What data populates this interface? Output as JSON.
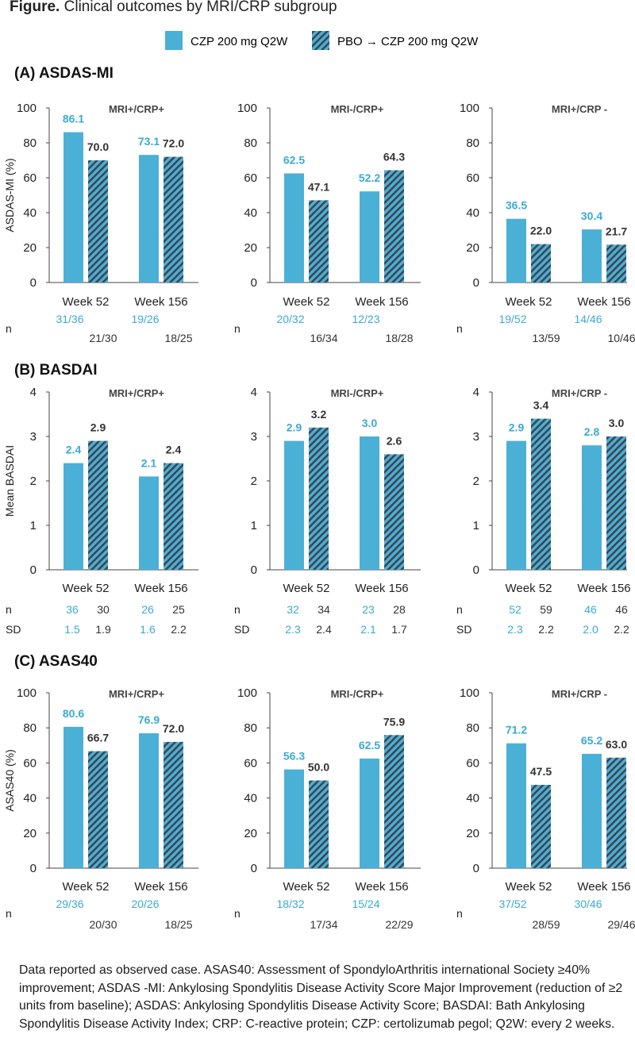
{
  "figure": {
    "title_bold": "Figure.",
    "title_rest": " Clinical outcomes by MRI/CRP subgroup",
    "footnote": "Data reported as observed case. ASAS40: Assessment of  SpondyloArthritis international Society ≥40% improvement; ASDAS -MI: Ankylosing Spondylitis Disease Activity Score Major Improvement (reduction of ≥2 units from baseline); ASDAS: Ankylosing Spondylitis Disease Activity Score; BASDAI: Bath Ankylosing Spondylitis Disease Activity Index; CRP: C-reactive protein; CZP: certolizumab pegol; Q2W: every 2 weeks."
  },
  "legend": {
    "czp_label": "CZP 200 mg Q2W",
    "pbo_label": "PBO → CZP 200 mg Q2W"
  },
  "colors": {
    "czp": "#4bb0d6",
    "pbo_hatch": "#4bb0d6",
    "pbo_stripe": "#3d4652",
    "czp_text": "#3aaad3",
    "pbo_text": "#333333"
  },
  "chart_data": [
    {
      "type": "bar",
      "section": "(A) ASDAS-MI",
      "panel": "MRI+/CRP+",
      "ylabel": "ASDAS-MI (%)",
      "ylim": [
        0,
        100
      ],
      "yticks": [
        0,
        20,
        40,
        60,
        80,
        100
      ],
      "categories": [
        "Week 52",
        "Week 156"
      ],
      "series": [
        {
          "values": [
            86.1,
            73.1
          ],
          "labels": [
            "86.1",
            "73.1"
          ]
        },
        {
          "values": [
            70.0,
            72.0
          ],
          "labels": [
            "70.0",
            "72.0"
          ]
        }
      ],
      "n_row": {
        "label": "n",
        "czp": [
          "31/36",
          "19/26"
        ],
        "pbo": [
          "21/30",
          "18/25"
        ]
      }
    },
    {
      "type": "bar",
      "section": "(A) ASDAS-MI",
      "panel": "MRI-/CRP+",
      "ylabel": "",
      "ylim": [
        0,
        100
      ],
      "yticks": [
        0,
        20,
        40,
        60,
        80,
        100
      ],
      "categories": [
        "Week 52",
        "Week 156"
      ],
      "series": [
        {
          "values": [
            62.5,
            52.2
          ],
          "labels": [
            "62.5",
            "52.2"
          ]
        },
        {
          "values": [
            47.1,
            64.3
          ],
          "labels": [
            "47.1",
            "64.3"
          ]
        }
      ],
      "n_row": {
        "label": "n",
        "czp": [
          "20/32",
          "12/23"
        ],
        "pbo": [
          "16/34",
          "18/28"
        ]
      }
    },
    {
      "type": "bar",
      "section": "(A) ASDAS-MI",
      "panel": "MRI+/CRP -",
      "ylabel": "",
      "ylim": [
        0,
        100
      ],
      "yticks": [
        0,
        20,
        40,
        60,
        80,
        100
      ],
      "categories": [
        "Week 52",
        "Week 156"
      ],
      "series": [
        {
          "values": [
            36.5,
            30.4
          ],
          "labels": [
            "36.5",
            "30.4"
          ]
        },
        {
          "values": [
            22.0,
            21.7
          ],
          "labels": [
            "22.0",
            "21.7"
          ]
        }
      ],
      "n_row": {
        "label": "n",
        "czp": [
          "19/52",
          "14/46"
        ],
        "pbo": [
          "13/59",
          "10/46"
        ]
      }
    },
    {
      "type": "bar",
      "section": "(B) BASDAI",
      "panel": "MRI+/CRP+",
      "ylabel": "Mean BASDAI",
      "ylim": [
        0,
        4
      ],
      "yticks": [
        0,
        1,
        2,
        3,
        4
      ],
      "categories": [
        "Week 52",
        "Week 156"
      ],
      "series": [
        {
          "values": [
            2.4,
            2.1
          ],
          "labels": [
            "2.4",
            "2.1"
          ]
        },
        {
          "values": [
            2.9,
            2.4
          ],
          "labels": [
            "2.9",
            "2.4"
          ]
        }
      ],
      "n_row": {
        "label": "n",
        "czp": [
          "36",
          "26"
        ],
        "pbo": [
          "30",
          "25"
        ]
      },
      "sd_row": {
        "label": "SD",
        "czp": [
          "1.5",
          "1.6"
        ],
        "pbo": [
          "1.9",
          "2.2"
        ]
      }
    },
    {
      "type": "bar",
      "section": "(B) BASDAI",
      "panel": "MRI-/CRP+",
      "ylabel": "",
      "ylim": [
        0,
        4
      ],
      "yticks": [
        0,
        1,
        2,
        3,
        4
      ],
      "categories": [
        "Week 52",
        "Week 156"
      ],
      "series": [
        {
          "values": [
            2.9,
            3.0
          ],
          "labels": [
            "2.9",
            "3.0"
          ]
        },
        {
          "values": [
            3.2,
            2.6
          ],
          "labels": [
            "3.2",
            "2.6"
          ]
        }
      ],
      "n_row": {
        "label": "n",
        "czp": [
          "32",
          "23"
        ],
        "pbo": [
          "34",
          "28"
        ]
      },
      "sd_row": {
        "label": "SD",
        "czp": [
          "2.3",
          "2.1"
        ],
        "pbo": [
          "2.4",
          "1.7"
        ]
      }
    },
    {
      "type": "bar",
      "section": "(B) BASDAI",
      "panel": "MRI+/CRP -",
      "ylabel": "",
      "ylim": [
        0,
        4
      ],
      "yticks": [
        0,
        1,
        2,
        3,
        4
      ],
      "categories": [
        "Week 52",
        "Week 156"
      ],
      "series": [
        {
          "values": [
            2.9,
            2.8
          ],
          "labels": [
            "2.9",
            "2.8"
          ]
        },
        {
          "values": [
            3.4,
            3.0
          ],
          "labels": [
            "3.4",
            "3.0"
          ]
        }
      ],
      "n_row": {
        "label": "n",
        "czp": [
          "52",
          "46"
        ],
        "pbo": [
          "59",
          "46"
        ]
      },
      "sd_row": {
        "label": "SD",
        "czp": [
          "2.3",
          "2.0"
        ],
        "pbo": [
          "2.2",
          "2.2"
        ]
      }
    },
    {
      "type": "bar",
      "section": "(C) ASAS40",
      "panel": "MRI+/CRP+",
      "ylabel": "ASAS40 (%)",
      "ylim": [
        0,
        100
      ],
      "yticks": [
        0,
        20,
        40,
        60,
        80,
        100
      ],
      "categories": [
        "Week 52",
        "Week 156"
      ],
      "series": [
        {
          "values": [
            80.6,
            76.9
          ],
          "labels": [
            "80.6",
            "76.9"
          ]
        },
        {
          "values": [
            66.7,
            72.0
          ],
          "labels": [
            "66.7",
            "72.0"
          ]
        }
      ],
      "n_row": {
        "label": "n",
        "czp": [
          "29/36",
          "20/26"
        ],
        "pbo": [
          "20/30",
          "18/25"
        ]
      }
    },
    {
      "type": "bar",
      "section": "(C) ASAS40",
      "panel": "MRI-/CRP+",
      "ylabel": "",
      "ylim": [
        0,
        100
      ],
      "yticks": [
        0,
        20,
        40,
        60,
        80,
        100
      ],
      "categories": [
        "Week 52",
        "Week 156"
      ],
      "series": [
        {
          "values": [
            56.3,
            62.5
          ],
          "labels": [
            "56.3",
            "62.5"
          ]
        },
        {
          "values": [
            50.0,
            75.9
          ],
          "labels": [
            "50.0",
            "75.9"
          ]
        }
      ],
      "n_row": {
        "label": "n",
        "czp": [
          "18/32",
          "15/24"
        ],
        "pbo": [
          "17/34",
          "22/29"
        ]
      }
    },
    {
      "type": "bar",
      "section": "(C) ASAS40",
      "panel": "MRI+/CRP -",
      "ylabel": "",
      "ylim": [
        0,
        100
      ],
      "yticks": [
        0,
        20,
        40,
        60,
        80,
        100
      ],
      "categories": [
        "Week 52",
        "Week 156"
      ],
      "series": [
        {
          "values": [
            71.2,
            65.2
          ],
          "labels": [
            "71.2",
            "65.2"
          ]
        },
        {
          "values": [
            47.5,
            63.0
          ],
          "labels": [
            "47.5",
            "63.0"
          ]
        }
      ],
      "n_row": {
        "label": "n",
        "czp": [
          "37/52",
          "30/46"
        ],
        "pbo": [
          "28/59",
          "29/46"
        ]
      }
    }
  ]
}
